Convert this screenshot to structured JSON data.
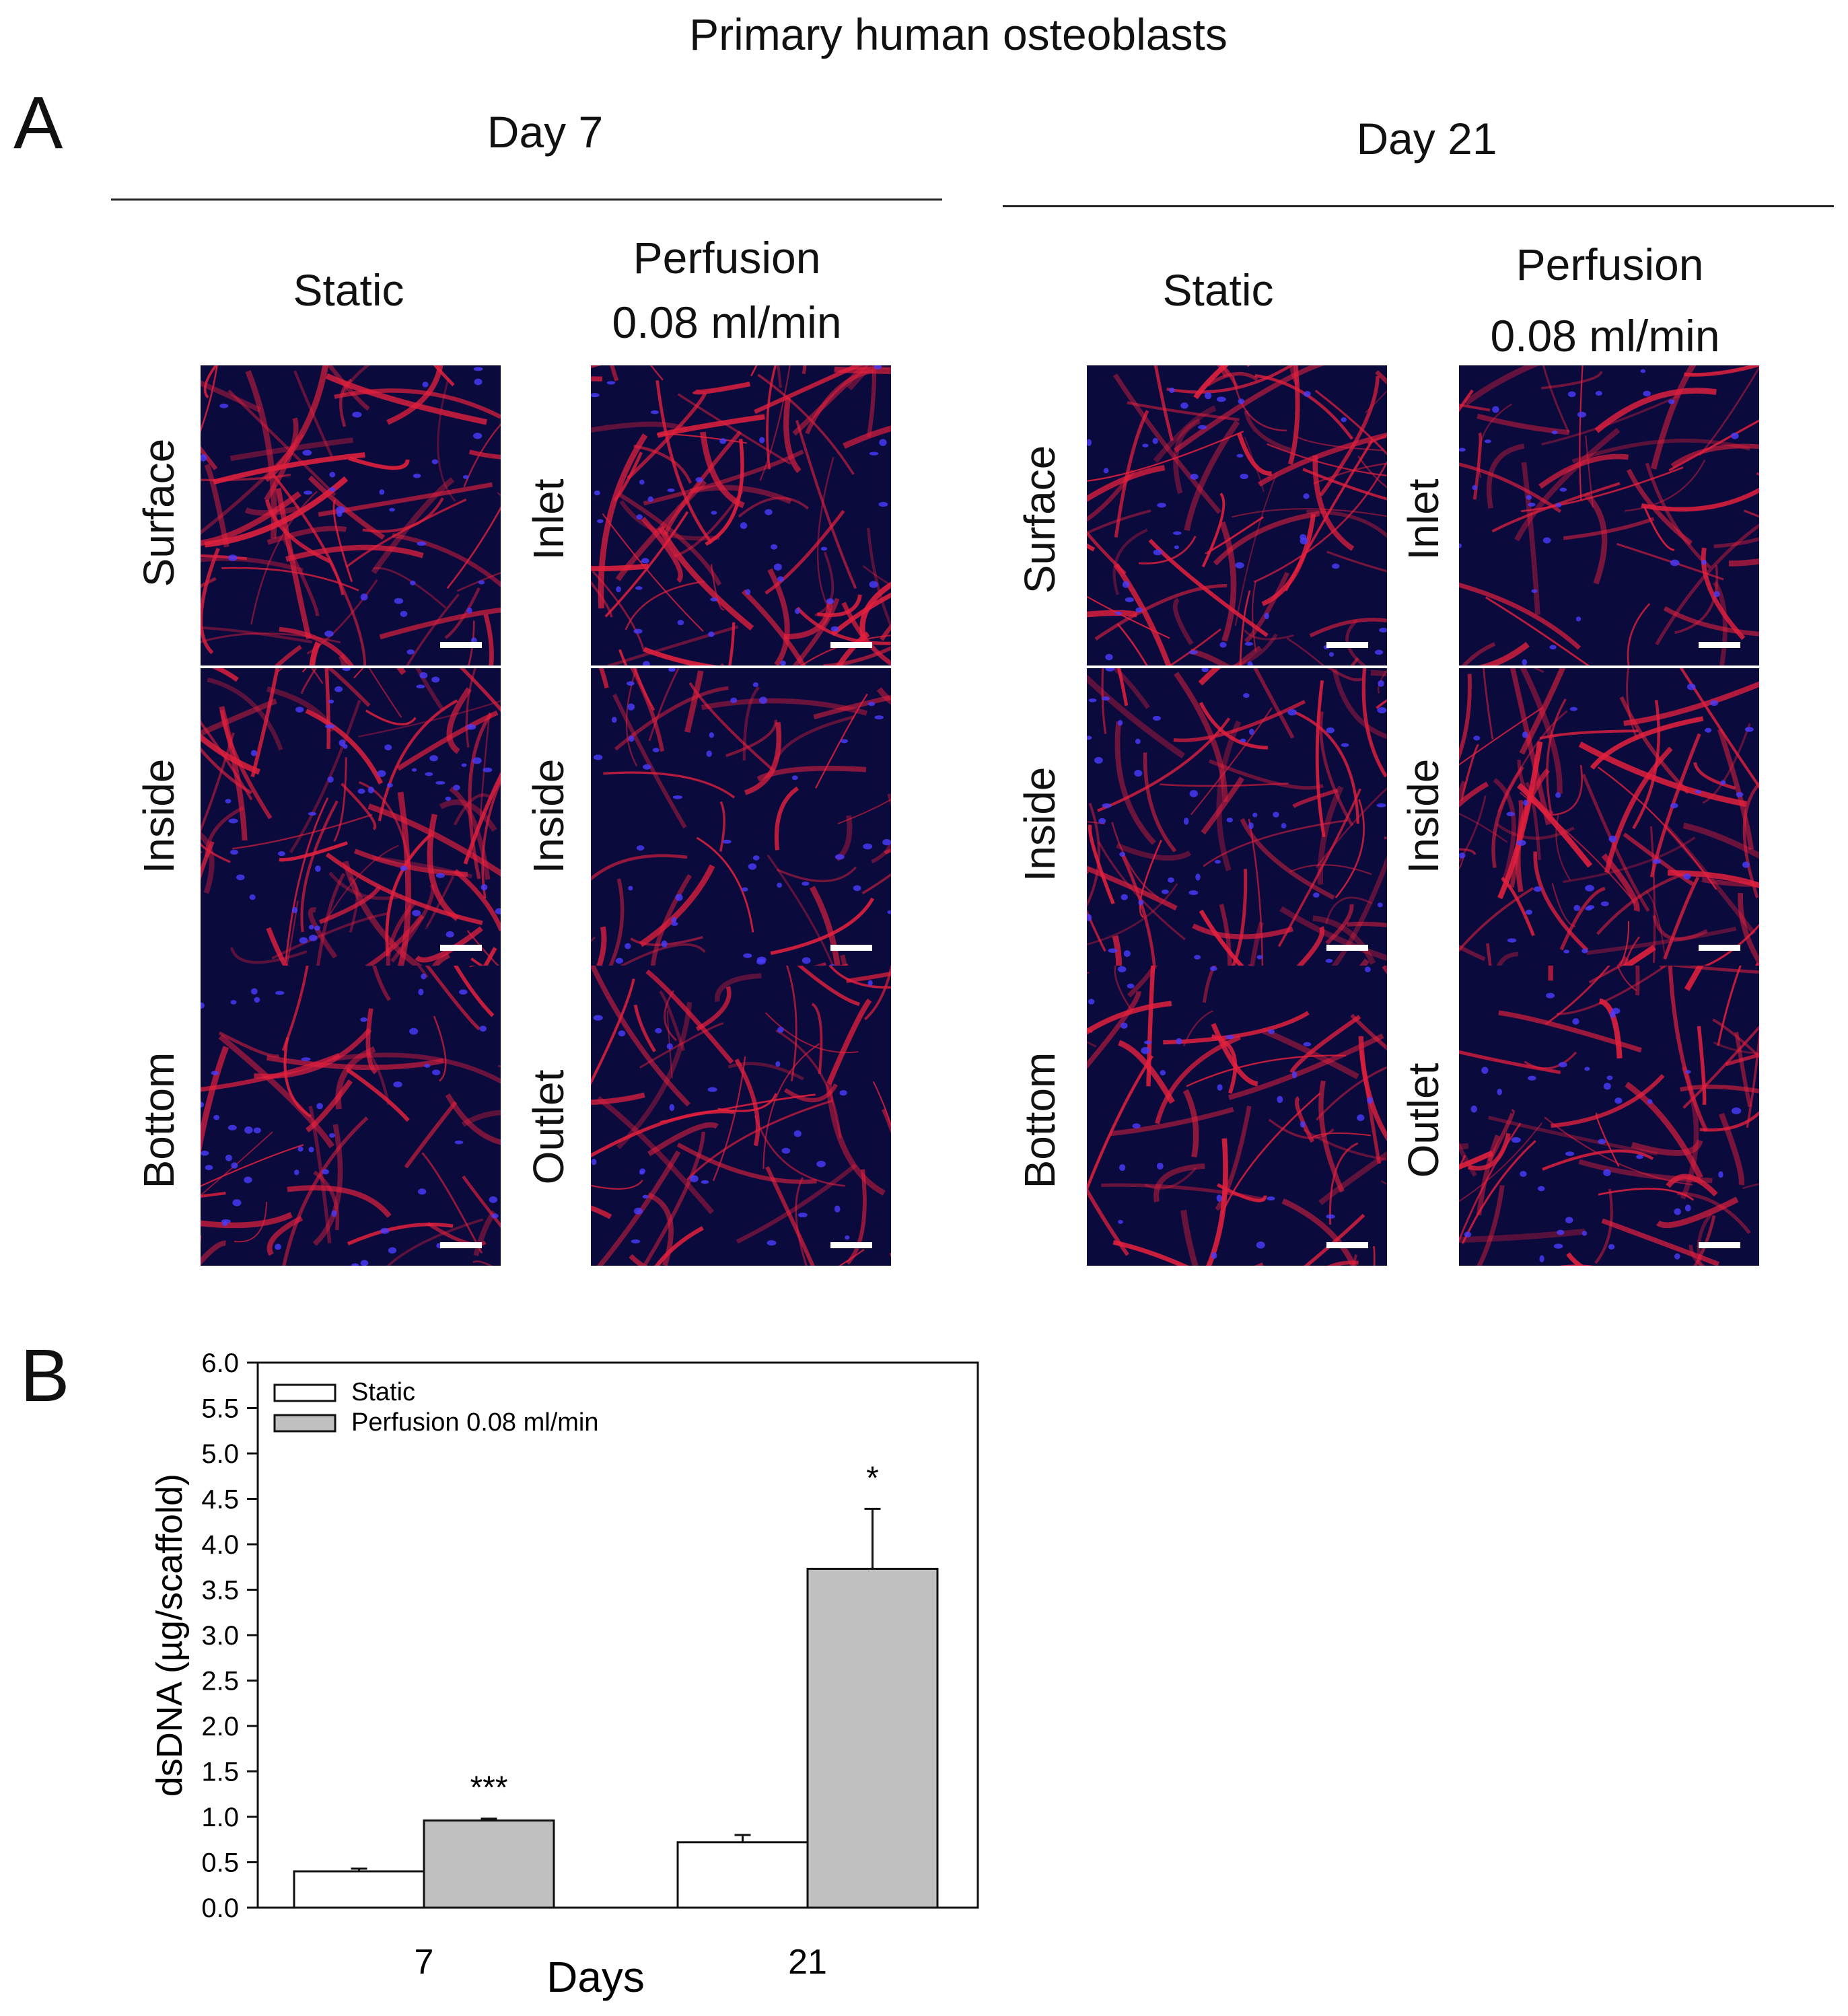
{
  "figure": {
    "title": "Primary human osteoblasts",
    "panel_a": {
      "letter": "A",
      "groups": [
        {
          "heading": "Day 7",
          "columns": [
            {
              "header_line1": "Static",
              "header_line2": "",
              "row_labels": [
                "Surface",
                "Inside",
                "Bottom"
              ]
            },
            {
              "header_line1": "Perfusion",
              "header_line2": "0.08 ml/min",
              "row_labels": [
                "Inlet",
                "Inside",
                "Outlet"
              ]
            }
          ]
        },
        {
          "heading": "Day 21",
          "columns": [
            {
              "header_line1": "Static",
              "header_line2": "",
              "row_labels": [
                "Surface",
                "Inside",
                "Bottom"
              ]
            },
            {
              "header_line1": "Perfusion",
              "header_line2": "0.08 ml/min",
              "row_labels": [
                "Inlet",
                "Inside",
                "Outlet"
              ]
            }
          ]
        }
      ]
    },
    "panel_b": {
      "letter": "B"
    }
  },
  "colors": {
    "micrograph_background": "#0a0a3c",
    "actin_stain": "#e3203d",
    "nuclei_stain": "#4a3cff",
    "static_bar": "#ffffff",
    "perfusion_bar": "#c0c0c0"
  },
  "chart_data": {
    "type": "bar",
    "title": "",
    "xlabel": "Days",
    "ylabel": "dsDNA (µg/scaffold)",
    "categories": [
      "7",
      "21"
    ],
    "ylim": [
      0,
      6.0
    ],
    "ytick_labels": [
      "0.0",
      "0.5",
      "1.0",
      "1.5",
      "2.0",
      "2.5",
      "3.0",
      "3.5",
      "4.0",
      "4.5",
      "5.0",
      "5.5",
      "6.0"
    ],
    "series": [
      {
        "name": "Static",
        "values": [
          0.4,
          0.72
        ],
        "errors": [
          0.03,
          0.08
        ],
        "color": "#ffffff"
      },
      {
        "name": "Perfusion 0.08 ml/min",
        "values": [
          0.96,
          3.73
        ],
        "errors": [
          0.02,
          0.66
        ],
        "color": "#c0c0c0"
      }
    ],
    "annotations": [
      "***",
      "*"
    ],
    "legend_position": "top-left",
    "grid": false
  }
}
